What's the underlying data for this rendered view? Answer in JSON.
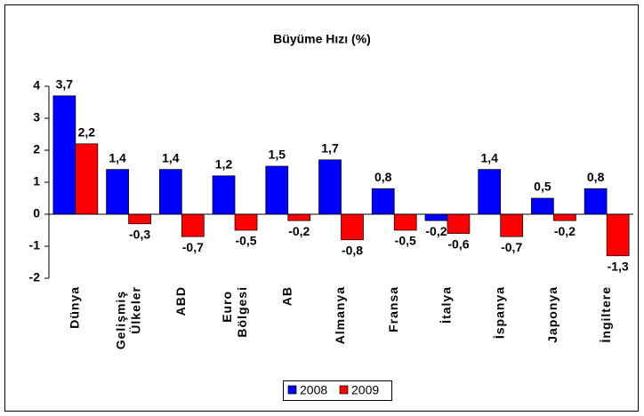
{
  "chart_data": {
    "type": "bar",
    "title": "Büyüme Hızı (%)",
    "categories": [
      "Dünya",
      "Gelişmiş Ülkeler",
      "ABD",
      "Euro Bölgesi",
      "AB",
      "Almanya",
      "Fransa",
      "İtalya",
      "İspanya",
      "Japonya",
      "İngiltere"
    ],
    "series": [
      {
        "name": "2008",
        "color": "#0000ff",
        "values": [
          3.7,
          1.4,
          1.4,
          1.2,
          1.5,
          1.7,
          0.8,
          -0.2,
          1.4,
          0.5,
          0.8
        ],
        "value_labels": [
          "3,7",
          "1,4",
          "1,4",
          "1,2",
          "1,5",
          "1,7",
          "0,8",
          "-0,2",
          "1,4",
          "0,5",
          "0,8"
        ]
      },
      {
        "name": "2009",
        "color": "#ff0000",
        "values": [
          2.2,
          -0.3,
          -0.7,
          -0.5,
          -0.2,
          -0.8,
          -0.5,
          -0.6,
          -0.7,
          -0.2,
          -1.3
        ],
        "value_labels": [
          "2,2",
          "-0,3",
          "-0,7",
          "-0,5",
          "-0,2",
          "-0,8",
          "-0,5",
          "-0,6",
          "-0,7",
          "-0,2",
          "-1,3"
        ]
      }
    ],
    "ylim": [
      -2,
      4
    ],
    "yticks": [
      -2,
      -1,
      0,
      1,
      2,
      3,
      4
    ],
    "legend": "bottom"
  }
}
